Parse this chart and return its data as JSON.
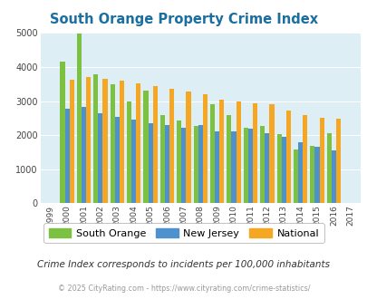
{
  "title": "South Orange Property Crime Index",
  "years": [
    1999,
    2000,
    2001,
    2002,
    2003,
    2004,
    2005,
    2006,
    2007,
    2008,
    2009,
    2010,
    2011,
    2012,
    2013,
    2014,
    2015,
    2016,
    2017
  ],
  "south_orange": [
    null,
    4150,
    4980,
    3780,
    3490,
    3000,
    3300,
    2580,
    2430,
    2280,
    2920,
    2580,
    2210,
    2270,
    2020,
    1570,
    1680,
    2060,
    null
  ],
  "new_jersey": [
    null,
    2770,
    2840,
    2630,
    2540,
    2450,
    2340,
    2290,
    2220,
    2300,
    2110,
    2100,
    2180,
    2060,
    1960,
    1780,
    1650,
    1560,
    null
  ],
  "national": [
    null,
    3620,
    3700,
    3640,
    3600,
    3520,
    3430,
    3350,
    3270,
    3210,
    3050,
    2980,
    2940,
    2900,
    2730,
    2600,
    2500,
    2470,
    null
  ],
  "south_orange_color": "#7dc142",
  "new_jersey_color": "#4f91cd",
  "national_color": "#f5a623",
  "bg_color": "#ddeef5",
  "title_color": "#1a6ea0",
  "footer_text": "Crime Index corresponds to incidents per 100,000 inhabitants",
  "copyright_text": "© 2025 CityRating.com - https://www.cityrating.com/crime-statistics/",
  "ylim": [
    0,
    5000
  ],
  "yticks": [
    0,
    1000,
    2000,
    3000,
    4000,
    5000
  ]
}
